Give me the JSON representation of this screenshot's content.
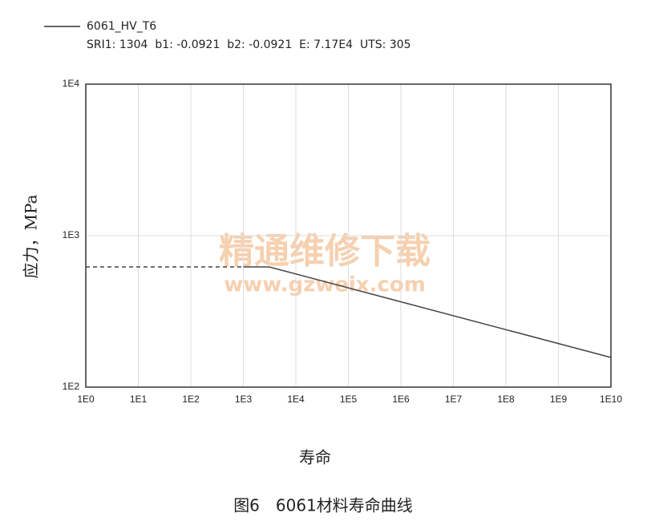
{
  "chart_data": {
    "type": "line",
    "legend_note": "SRI1: 1304  b1: -0.0921  b2: -0.0921  E: 7.17E4  UTS: 305",
    "ylabel": "应力，MPa",
    "xlabel": "寿命",
    "caption": "图6　6061材料寿命曲线",
    "watermark": [
      "精通维修下载",
      "www.gzweix.com"
    ],
    "xscale": "log",
    "yscale": "log",
    "grid": true,
    "xlim": [
      1,
      10000000000
    ],
    "ylim": [
      100,
      10000
    ],
    "xticks": [
      {
        "value": 1,
        "label": "1E0"
      },
      {
        "value": 10,
        "label": "1E1"
      },
      {
        "value": 100,
        "label": "1E2"
      },
      {
        "value": 1000,
        "label": "1E3"
      },
      {
        "value": 10000,
        "label": "1E4"
      },
      {
        "value": 100000,
        "label": "1E5"
      },
      {
        "value": 1000000,
        "label": "1E6"
      },
      {
        "value": 10000000,
        "label": "1E7"
      },
      {
        "value": 100000000,
        "label": "1E8"
      },
      {
        "value": 1000000000,
        "label": "1E9"
      },
      {
        "value": 10000000000,
        "label": "1E10"
      }
    ],
    "yticks": [
      {
        "value": 100,
        "label": "1E2"
      },
      {
        "value": 1000,
        "label": "1E3"
      },
      {
        "value": 10000,
        "label": "1E4"
      }
    ],
    "series": [
      {
        "name": "6061_HV_T6",
        "color": "#444444",
        "x": [
          1000,
          3100,
          10000000000
        ],
        "values": [
          622,
          622,
          157
        ]
      },
      {
        "color": "#444444",
        "dashed": true,
        "x": [
          1,
          1000
        ],
        "values": [
          622,
          622
        ]
      }
    ]
  }
}
